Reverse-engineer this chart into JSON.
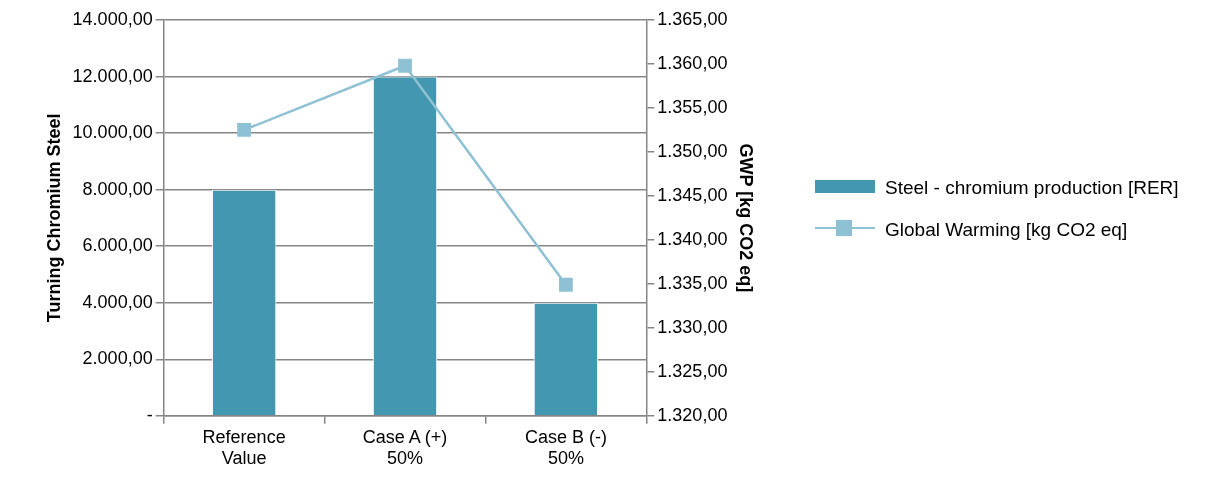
{
  "chart_data": {
    "type": "bar",
    "categories": [
      "Reference Value",
      "Case A (+) 50%",
      "Case B (-) 50%"
    ],
    "ylabel": "Turning Chromium Steel",
    "y2label": "GWP [kg CO2 eq]",
    "series": [
      {
        "name": "Steel - chromium production [RER]",
        "color": "#4397b0",
        "values": [
          8000,
          12000,
          4000
        ]
      },
      {
        "name": "Global Warming  [kg CO2 eq]",
        "type": "line",
        "axis": "y2",
        "color": "#8fc1d4",
        "marker": "square",
        "values": [
          1352.5,
          1359.8,
          1334.9
        ]
      }
    ],
    "ylim": [
      0,
      14000
    ],
    "yticks": [
      {
        "value": 0,
        "label": "-"
      },
      {
        "value": 2000,
        "label": "2.000,00"
      },
      {
        "value": 4000,
        "label": "4.000,00"
      },
      {
        "value": 6000,
        "label": "6.000,00"
      },
      {
        "value": 8000,
        "label": "8.000,00"
      },
      {
        "value": 10000,
        "label": "10.000,00"
      },
      {
        "value": 12000,
        "label": "12.000,00"
      },
      {
        "value": 14000,
        "label": "14.000,00"
      }
    ],
    "y2lim": [
      1320,
      1365
    ],
    "y2ticks": [
      {
        "value": 1320,
        "label": "1.320,00"
      },
      {
        "value": 1325,
        "label": "1.325,00"
      },
      {
        "value": 1330,
        "label": "1.330,00"
      },
      {
        "value": 1335,
        "label": "1.335,00"
      },
      {
        "value": 1340,
        "label": "1.340,00"
      },
      {
        "value": 1345,
        "label": "1.345,00"
      },
      {
        "value": 1350,
        "label": "1.350,00"
      },
      {
        "value": 1355,
        "label": "1.355,00"
      },
      {
        "value": 1360,
        "label": "1.360,00"
      },
      {
        "value": 1365,
        "label": "1.365,00"
      }
    ],
    "grid": "y",
    "legend": "right"
  }
}
